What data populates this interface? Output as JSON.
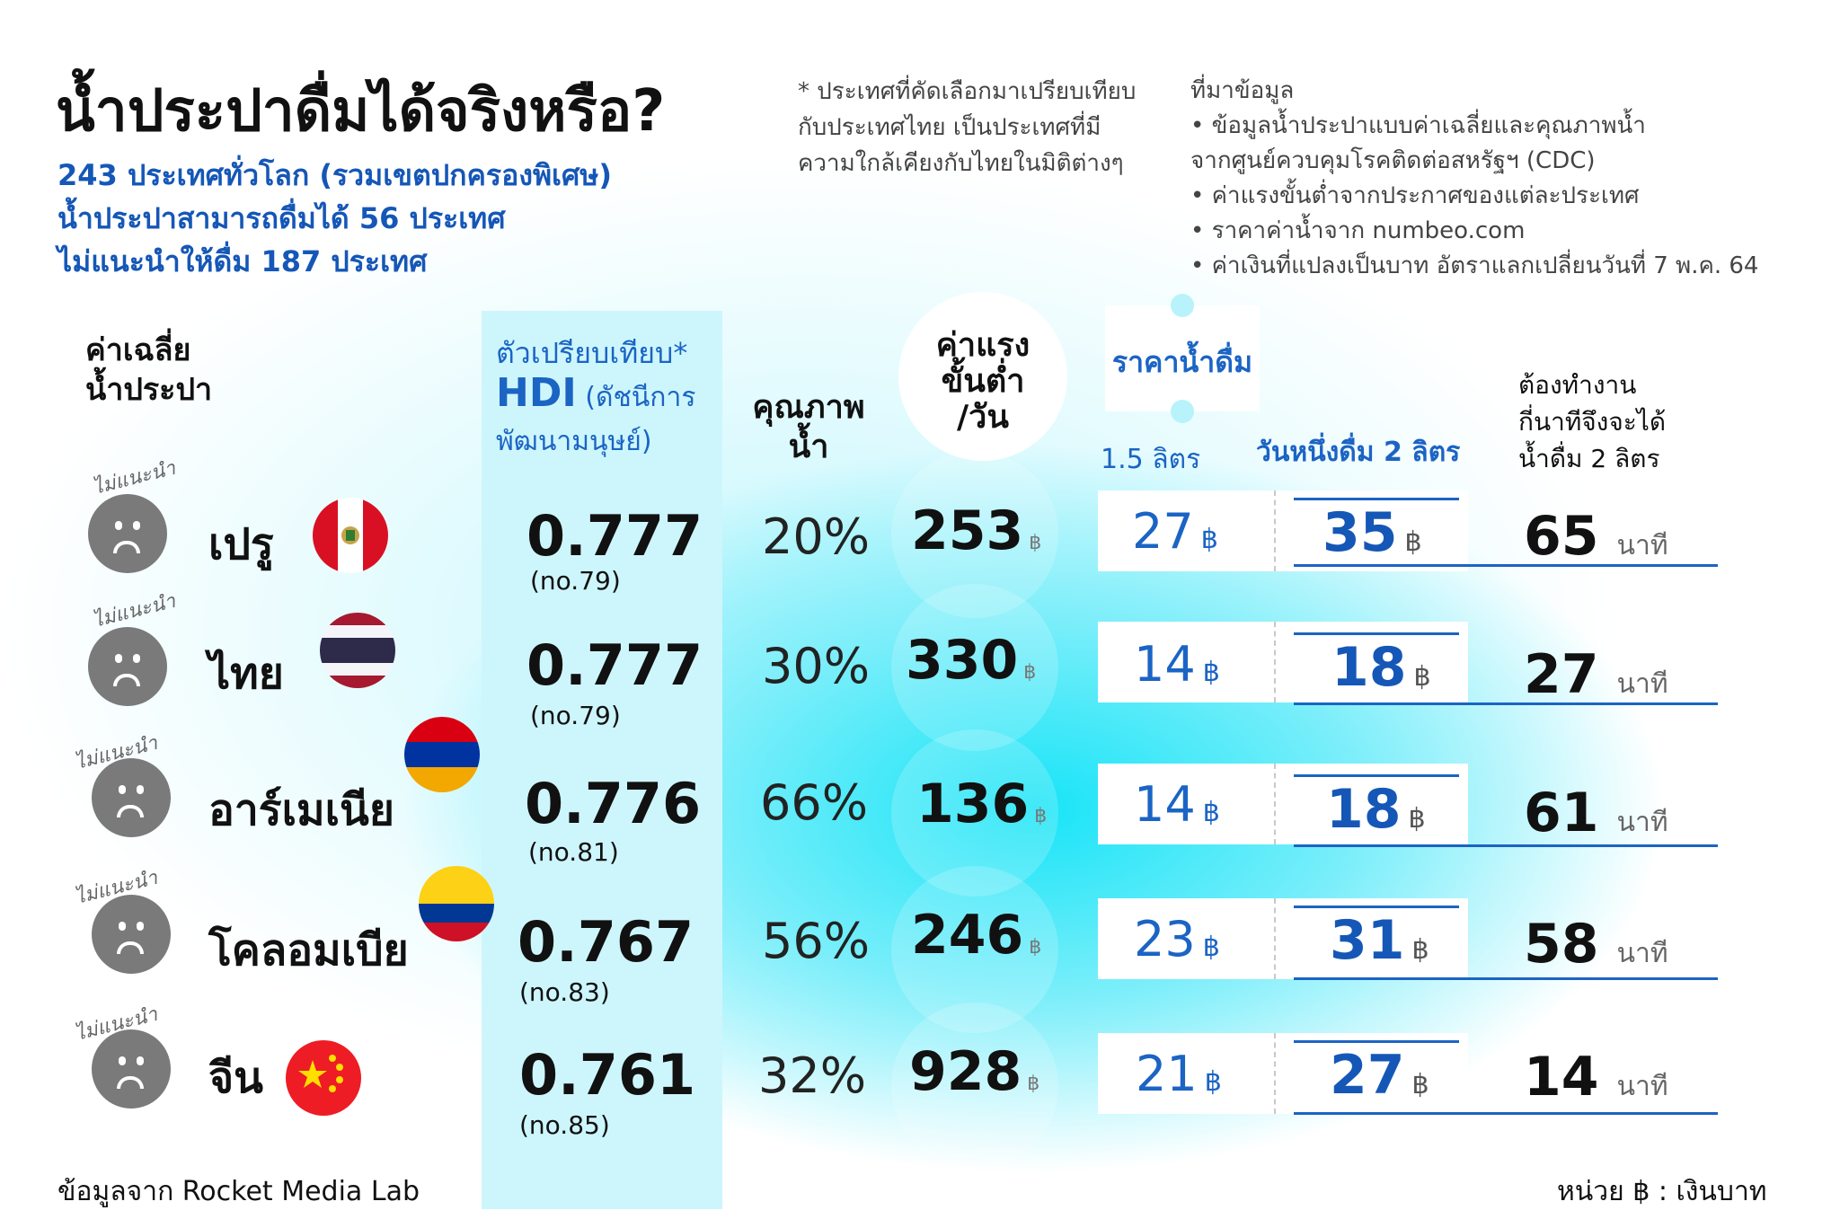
{
  "header": {
    "title": "น้ำประปาดื่มได้จริงหรือ?",
    "subtitle_lines": [
      "243 ประเทศทั่วโลก (รวมเขตปกครองพิเศษ)",
      "น้ำประปาสามารถดื่มได้ 56 ประเทศ",
      "ไม่แนะนำให้ดื่ม 187 ประเทศ"
    ],
    "note_lines": [
      "* ประเทศที่คัดเลือกมาเปรียบเทียบ",
      "กับประเทศไทย เป็นประเทศที่มี",
      "ความใกล้เคียงกับไทยในมิติต่างๆ"
    ],
    "sources_title": "ที่มาข้อมูล",
    "sources_lines": [
      "• ข้อมูลน้ำประปาแบบค่าเฉลี่ยและคุณภาพน้ำ",
      "จากศูนย์ควบคุมโรคติดต่อสหรัฐฯ (CDC)",
      "• ค่าแรงขั้นต่ำจากประกาศของแต่ละประเทศ",
      "• ราคาค่าน้ำจาก numbeo.com",
      "• ค่าเงินที่แปลงเป็นบาท อัตราแลกเปลี่ยนวันที่ 7 พ.ค. 64"
    ]
  },
  "columns": {
    "avg_water": [
      "ค่าเฉลี่ย",
      "น้ำประปา"
    ],
    "hdi_line1": "ตัวเปรียบเทียบ*",
    "hdi_big": "HDI",
    "hdi_small": " (ดัชนีการ",
    "hdi_line3": "พัฒนามนุษย์)",
    "quality": [
      "คุณภาพ",
      "น้ำ"
    ],
    "wage": [
      "ค่าแรง",
      "ขั้นต่ำ",
      "/วัน"
    ],
    "price": "ราคาน้ำดื่ม",
    "price_15": "1.5 ลิตร",
    "price_2l": "วันหนึ่งดื่ม 2 ลิตร",
    "work": [
      "ต้องทำงาน",
      "กี่นาทีจึงจะได้",
      "น้ำดื่ม 2 ลิตร"
    ]
  },
  "baht": "฿",
  "minute_unit": "นาที",
  "rows": [
    {
      "badge": "ไม่แนะนำ",
      "country": "เปรู",
      "flag": "peru",
      "hdi": "0.777",
      "rank": "(no.79)",
      "quality": "20%",
      "wage": "253",
      "price_15": "27",
      "price_2l": "35",
      "minutes": "65"
    },
    {
      "badge": "ไม่แนะนำ",
      "country": "ไทย",
      "flag": "thailand",
      "hdi": "0.777",
      "rank": "(no.79)",
      "quality": "30%",
      "wage": "330",
      "price_15": "14",
      "price_2l": "18",
      "minutes": "27"
    },
    {
      "badge": "ไม่แนะนำ",
      "country": "อาร์เมเนีย",
      "flag": "armenia",
      "hdi": "0.776",
      "rank": "(no.81)",
      "quality": "66%",
      "wage": "136",
      "price_15": "14",
      "price_2l": "18",
      "minutes": "61"
    },
    {
      "badge": "ไม่แนะนำ",
      "country": "โคลอมเบีย",
      "flag": "colombia",
      "hdi": "0.767",
      "rank": "(no.83)",
      "quality": "56%",
      "wage": "246",
      "price_15": "23",
      "price_2l": "31",
      "minutes": "58"
    },
    {
      "badge": "ไม่แนะนำ",
      "country": "จีน",
      "flag": "china",
      "hdi": "0.761",
      "rank": "(no.85)",
      "quality": "32%",
      "wage": "928",
      "price_15": "21",
      "price_2l": "27",
      "minutes": "14"
    }
  ],
  "footer": {
    "source": "ข้อมูลจาก Rocket Media Lab",
    "unit": "หน่วย ฿ : เงินบาท"
  }
}
